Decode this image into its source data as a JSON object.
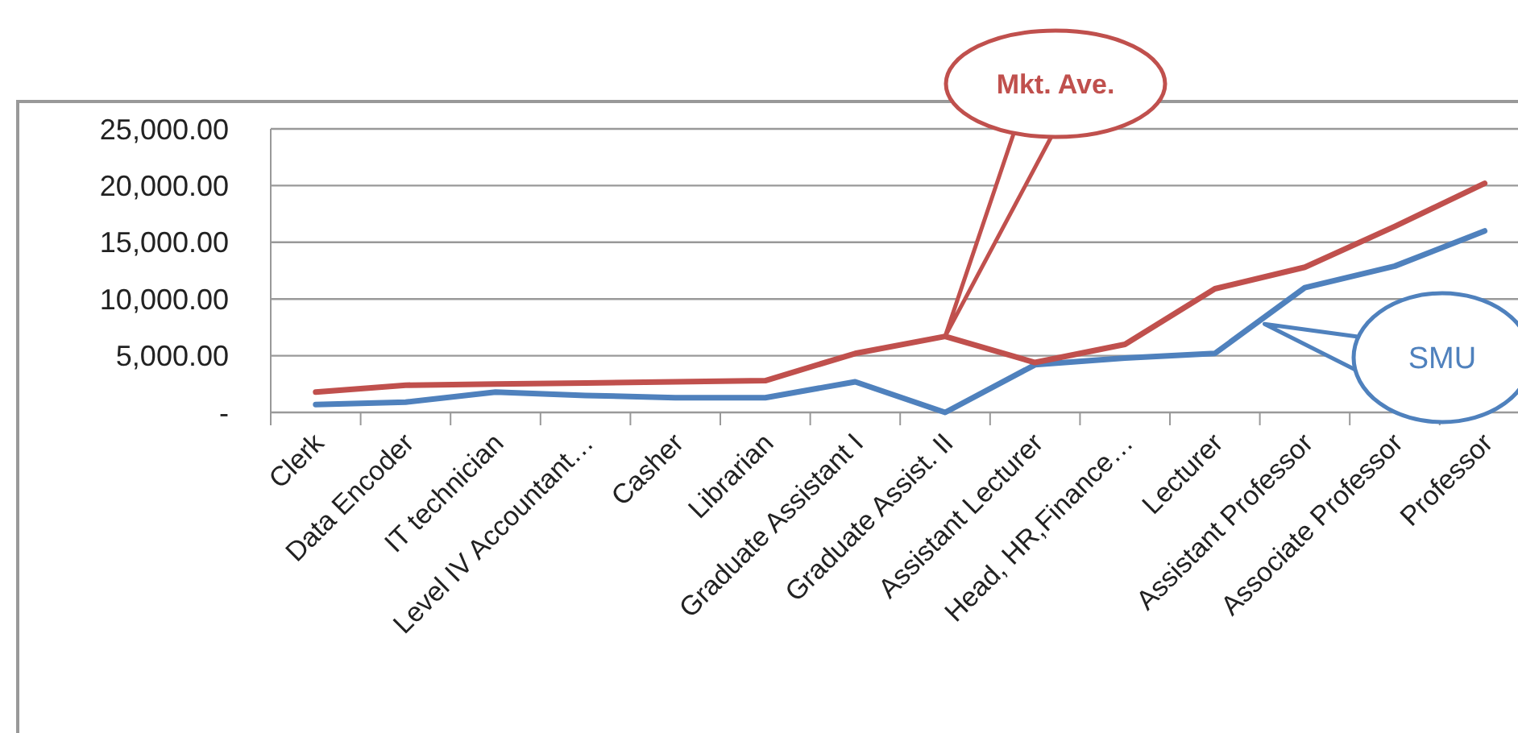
{
  "chart_data": {
    "type": "line",
    "categories": [
      "Clerk",
      "Data Encoder",
      "IT technician",
      "Level IV Accountant…",
      "Casher",
      "Librarian",
      "Graduate Assistant I",
      "Graduate Assist. II",
      "Assistant Lecturer",
      "Head, HR,Finance…",
      "Lecturer",
      "Assistant Professor",
      "Associate Professor",
      "Professor"
    ],
    "series": [
      {
        "name": "SMU",
        "color": "#4f81bd",
        "values": [
          700,
          900,
          1800,
          1500,
          1300,
          1300,
          2700,
          0,
          4200,
          4800,
          5200,
          11000,
          12900,
          16000
        ]
      },
      {
        "name": "Mkt. Ave.",
        "color": "#c0504d",
        "values": [
          1800,
          2400,
          2500,
          2600,
          2700,
          2800,
          5200,
          6700,
          4400,
          6000,
          10900,
          12800,
          16400,
          20200
        ]
      }
    ],
    "ylim": [
      0,
      25000
    ],
    "yticks": [
      {
        "value": 0,
        "label": "-"
      },
      {
        "value": 5000,
        "label": "5,000.00"
      },
      {
        "value": 10000,
        "label": "10,000.00"
      },
      {
        "value": 15000,
        "label": "15,000.00"
      },
      {
        "value": 20000,
        "label": "20,000.00"
      },
      {
        "value": 25000,
        "label": "25,000.00"
      }
    ],
    "grid": "y",
    "marker": "none",
    "line_style": "solid"
  }
}
